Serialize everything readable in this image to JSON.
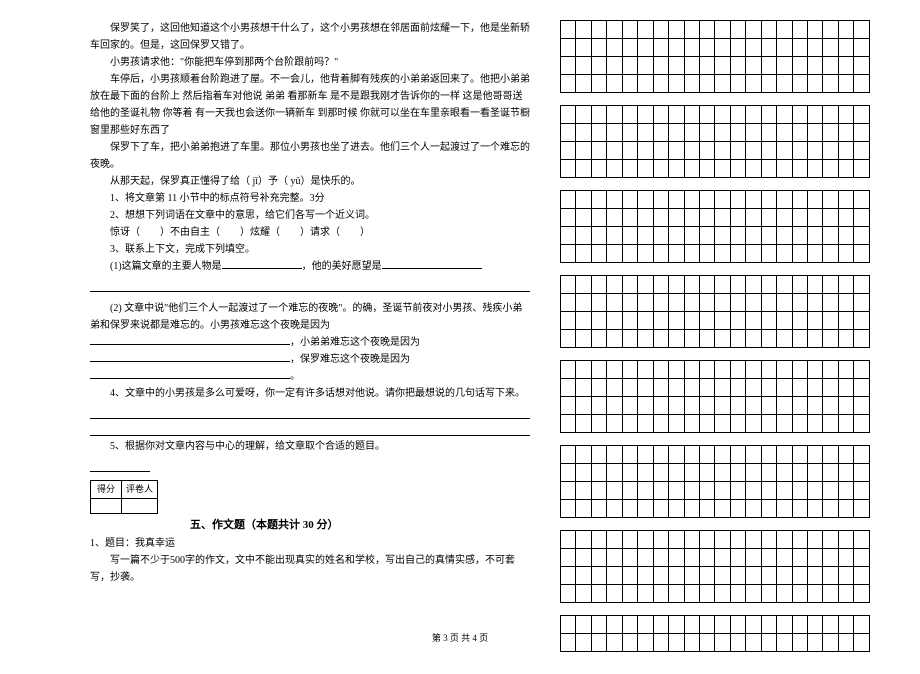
{
  "left": {
    "p1": "保罗笑了，这回他知道这个小男孩想干什么了，这个小男孩想在邻居面前炫耀一下，他是坐新轿车回家的。但是，这回保罗又错了。",
    "p2_prefix": "小男孩请求他：",
    "p2_quote_open": "\"",
    "p2_quote_text": "你能把车停到那两个台阶跟前吗？",
    "p2_quote_close": "\"",
    "p3": "车停后，小男孩顺着台阶跑进了屋。不一会儿，他背着脚有残疾的小弟弟返回来了。他把小弟弟放在最下面的台阶上 然后指着车对他说 弟弟 看那新车 是不是跟我刚才告诉你的一样 这是他哥哥送给他的圣诞礼物 你等着 有一天我也会送你一辆新车 到那时候 你就可以坐在车里亲眼看一看圣诞节橱窗里那些好东西了",
    "p4": "保罗下了车，把小弟弟抱进了车里。那位小男孩也坐了进去。他们三个人一起渡过了一个难忘的夜晚。",
    "p5": "从那天起，保罗真正懂得了给（ jǐ）予（ yǔ）是快乐的。",
    "q1": "1、将文章第 11 小节中的标点符号补充完整。3分",
    "q2": "2、想想下列词语在文章中的意思，给它们各写一个近义词。",
    "q2_words": "惊讶（　　）不由自主（　　）炫耀（　　）请求（　　）",
    "q3": "3、联系上下文，完成下列填空。",
    "q3_1_a": "(1)这篇文章的主要人物是",
    "q3_1_b": "，他的美好愿望是",
    "q3_2_a": "(2) 文章中说\"他们三个人一起渡过了一个难忘的夜晚\"。的确，圣诞节前夜对小男孩、残疾小弟弟和保罗来说都是难忘的。小男孩难忘这个夜晚是因为",
    "q3_2_b": "，小弟弟难忘这个夜晚是因为",
    "q3_2_c": "，保罗难忘这个夜晚是因为",
    "q3_2_d": "。",
    "q4": "4、文章中的小男孩是多么可爱呀，你一定有许多话想对他说。请你把最想说的几句话写下来。",
    "q5": "5、根据你对文章内容与中心的理解，给文章取个合适的题目。",
    "score_h1": "得分",
    "score_h2": "评卷人",
    "section5": "五、作文题（本题共计 30 分）",
    "essay_q": "1、题目：我真幸运",
    "essay_req": "写一篇不少于500字的作文，文中不能出现真实的姓名和学校，写出自己的真情实感，不可套写，抄袭。"
  },
  "grid": {
    "blocks": 8,
    "rows_per_block": 4,
    "cols": 20,
    "last_rows": 2
  },
  "footer": "第 3 页 共 4 页"
}
